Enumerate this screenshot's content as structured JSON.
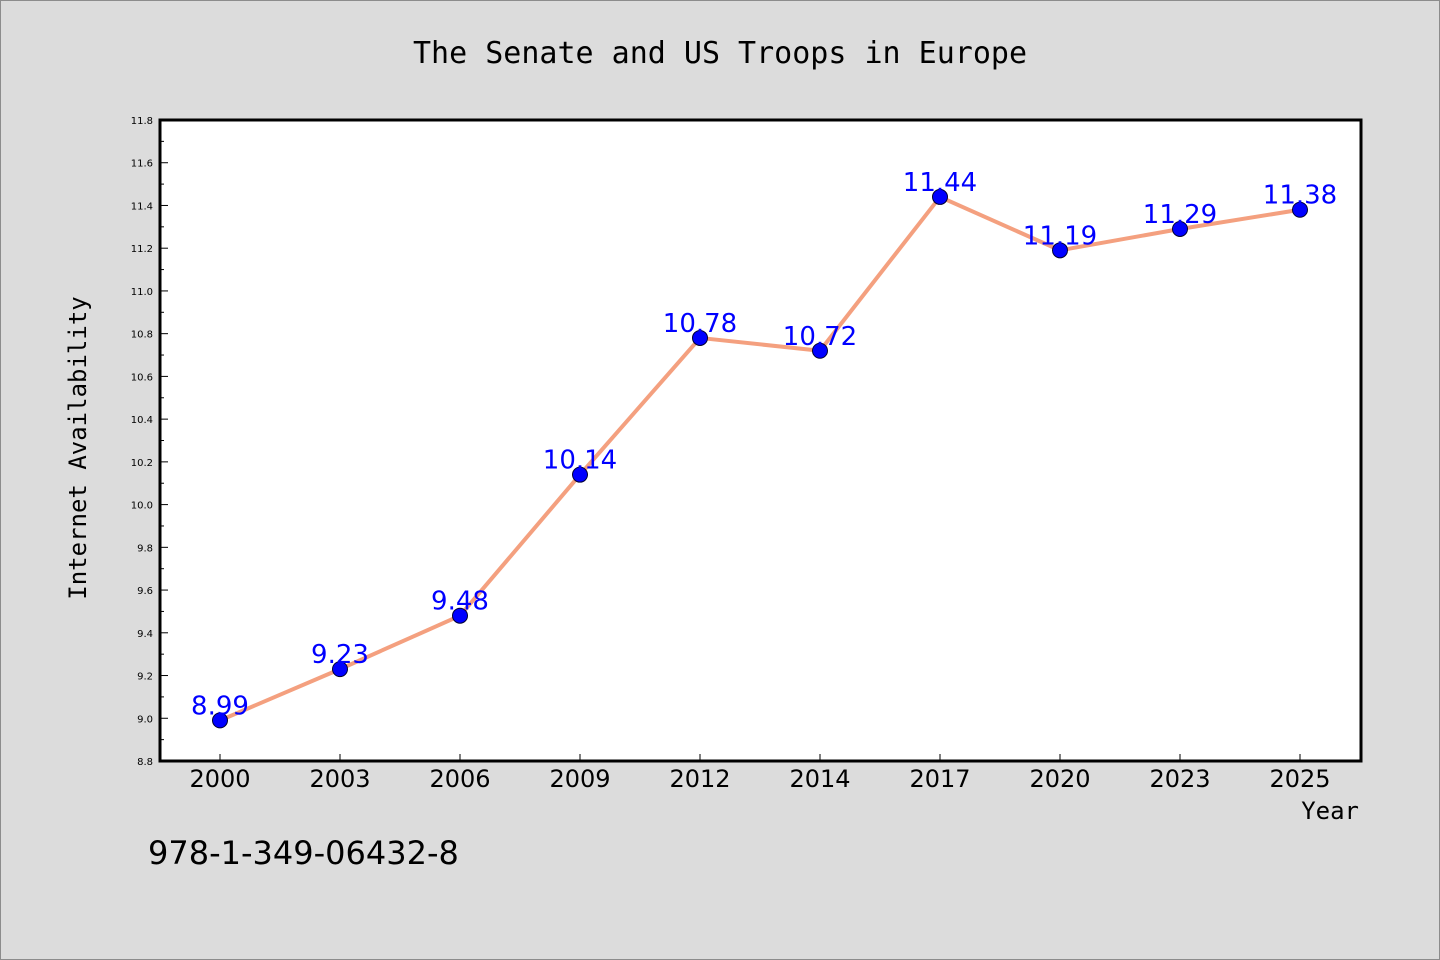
{
  "chart_data": {
    "type": "line",
    "title": "The Senate and US Troops in Europe",
    "xlabel": "Year",
    "ylabel": "Internet Availability",
    "categories": [
      "2000",
      "2003",
      "2006",
      "2009",
      "2012",
      "2014",
      "2017",
      "2020",
      "2023",
      "2025"
    ],
    "series": [
      {
        "values": [
          8.99,
          9.23,
          9.48,
          10.14,
          10.78,
          10.72,
          11.44,
          11.19,
          11.29,
          11.38
        ]
      }
    ],
    "data_labels": [
      "8.99",
      "9.23",
      "9.48",
      "10.14",
      "10.78",
      "10.72",
      "11.44",
      "11.19",
      "11.29",
      "11.38"
    ],
    "ylim": [
      8.8,
      11.8
    ],
    "yticks": [
      "8.8",
      "9.0",
      "9.2",
      "9.4",
      "9.6",
      "9.8",
      "10.0",
      "10.2",
      "10.4",
      "10.6",
      "10.8",
      "11.0",
      "11.2",
      "11.4",
      "11.6",
      "11.8"
    ],
    "grid": false,
    "line_color": "#f4a07f",
    "marker_color": "#0000ff",
    "label_color": "#0000ff"
  },
  "footer_code": "978-1-349-06432-8"
}
